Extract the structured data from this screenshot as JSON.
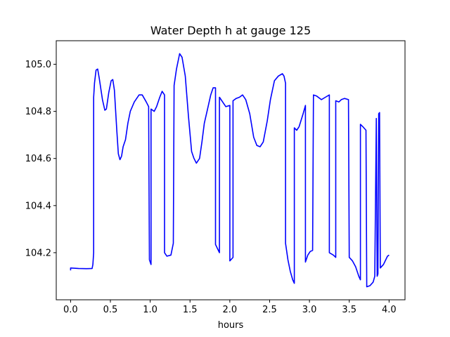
{
  "chart_data": {
    "type": "line",
    "title": "Water Depth h at gauge 125",
    "xlabel": "hours",
    "ylabel": "",
    "xlim": [
      -0.18,
      4.2
    ],
    "ylim": [
      104.0,
      105.1
    ],
    "xticks": [
      0.0,
      0.5,
      1.0,
      1.5,
      2.0,
      2.5,
      3.0,
      3.5,
      4.0
    ],
    "xtick_labels": [
      "0.0",
      "0.5",
      "1.0",
      "1.5",
      "2.0",
      "2.5",
      "3.0",
      "3.5",
      "4.0"
    ],
    "yticks": [
      104.2,
      104.4,
      104.6,
      104.8,
      105.0
    ],
    "ytick_labels": [
      "104.2",
      "104.4",
      "104.6",
      "104.8",
      "105.0"
    ],
    "grid": false,
    "legend": "none",
    "series": [
      {
        "color": "#0000ff",
        "points": [
          [
            0.0,
            104.125
          ],
          [
            0.0,
            104.135
          ],
          [
            0.1,
            104.133
          ],
          [
            0.2,
            104.132
          ],
          [
            0.27,
            104.133
          ],
          [
            0.28,
            104.15
          ],
          [
            0.29,
            104.2
          ],
          [
            0.29,
            104.86
          ],
          [
            0.3,
            104.92
          ],
          [
            0.32,
            104.975
          ],
          [
            0.34,
            104.98
          ],
          [
            0.36,
            104.94
          ],
          [
            0.4,
            104.85
          ],
          [
            0.43,
            104.805
          ],
          [
            0.45,
            104.81
          ],
          [
            0.48,
            104.88
          ],
          [
            0.51,
            104.93
          ],
          [
            0.53,
            104.935
          ],
          [
            0.55,
            104.89
          ],
          [
            0.58,
            104.72
          ],
          [
            0.6,
            104.62
          ],
          [
            0.62,
            104.595
          ],
          [
            0.64,
            104.61
          ],
          [
            0.66,
            104.65
          ],
          [
            0.69,
            104.68
          ],
          [
            0.72,
            104.75
          ],
          [
            0.75,
            104.8
          ],
          [
            0.8,
            104.84
          ],
          [
            0.86,
            104.87
          ],
          [
            0.9,
            104.87
          ],
          [
            0.95,
            104.84
          ],
          [
            0.98,
            104.82
          ],
          [
            0.99,
            104.17
          ],
          [
            1.01,
            104.15
          ],
          [
            1.01,
            104.81
          ],
          [
            1.05,
            104.8
          ],
          [
            1.08,
            104.82
          ],
          [
            1.12,
            104.86
          ],
          [
            1.15,
            104.885
          ],
          [
            1.18,
            104.87
          ],
          [
            1.18,
            104.2
          ],
          [
            1.21,
            104.185
          ],
          [
            1.26,
            104.19
          ],
          [
            1.29,
            104.24
          ],
          [
            1.3,
            104.91
          ],
          [
            1.33,
            104.98
          ],
          [
            1.37,
            105.045
          ],
          [
            1.4,
            105.03
          ],
          [
            1.44,
            104.95
          ],
          [
            1.48,
            104.78
          ],
          [
            1.52,
            104.63
          ],
          [
            1.55,
            104.6
          ],
          [
            1.58,
            104.58
          ],
          [
            1.62,
            104.6
          ],
          [
            1.65,
            104.67
          ],
          [
            1.68,
            104.75
          ],
          [
            1.72,
            104.81
          ],
          [
            1.76,
            104.87
          ],
          [
            1.79,
            104.9
          ],
          [
            1.82,
            104.9
          ],
          [
            1.82,
            104.235
          ],
          [
            1.87,
            104.2
          ],
          [
            1.87,
            104.86
          ],
          [
            1.92,
            104.835
          ],
          [
            1.95,
            104.82
          ],
          [
            2.0,
            104.825
          ],
          [
            2.0,
            104.165
          ],
          [
            2.04,
            104.18
          ],
          [
            2.04,
            104.845
          ],
          [
            2.08,
            104.855
          ],
          [
            2.12,
            104.86
          ],
          [
            2.16,
            104.87
          ],
          [
            2.2,
            104.85
          ],
          [
            2.25,
            104.79
          ],
          [
            2.3,
            104.69
          ],
          [
            2.34,
            104.655
          ],
          [
            2.38,
            104.65
          ],
          [
            2.42,
            104.67
          ],
          [
            2.47,
            104.76
          ],
          [
            2.51,
            104.85
          ],
          [
            2.56,
            104.93
          ],
          [
            2.61,
            104.95
          ],
          [
            2.66,
            104.96
          ],
          [
            2.68,
            104.95
          ],
          [
            2.7,
            104.92
          ],
          [
            2.7,
            104.24
          ],
          [
            2.73,
            104.17
          ],
          [
            2.76,
            104.12
          ],
          [
            2.79,
            104.085
          ],
          [
            2.81,
            104.07
          ],
          [
            2.81,
            104.73
          ],
          [
            2.84,
            104.72
          ],
          [
            2.87,
            104.735
          ],
          [
            2.92,
            104.79
          ],
          [
            2.95,
            104.825
          ],
          [
            2.95,
            104.16
          ],
          [
            2.98,
            104.19
          ],
          [
            3.01,
            104.205
          ],
          [
            3.04,
            104.21
          ],
          [
            3.05,
            104.87
          ],
          [
            3.09,
            104.865
          ],
          [
            3.15,
            104.85
          ],
          [
            3.2,
            104.86
          ],
          [
            3.25,
            104.87
          ],
          [
            3.25,
            104.2
          ],
          [
            3.3,
            104.19
          ],
          [
            3.33,
            104.18
          ],
          [
            3.33,
            104.845
          ],
          [
            3.37,
            104.84
          ],
          [
            3.4,
            104.85
          ],
          [
            3.44,
            104.855
          ],
          [
            3.49,
            104.85
          ],
          [
            3.5,
            104.18
          ],
          [
            3.54,
            104.165
          ],
          [
            3.58,
            104.14
          ],
          [
            3.62,
            104.1
          ],
          [
            3.64,
            104.085
          ],
          [
            3.64,
            104.745
          ],
          [
            3.67,
            104.735
          ],
          [
            3.71,
            104.72
          ],
          [
            3.72,
            104.055
          ],
          [
            3.76,
            104.06
          ],
          [
            3.8,
            104.075
          ],
          [
            3.82,
            104.1
          ],
          [
            3.84,
            104.77
          ],
          [
            3.85,
            104.1
          ],
          [
            3.86,
            104.11
          ],
          [
            3.87,
            104.79
          ],
          [
            3.88,
            104.795
          ],
          [
            3.89,
            104.135
          ],
          [
            3.93,
            104.15
          ],
          [
            3.98,
            104.185
          ],
          [
            4.0,
            104.19
          ]
        ]
      }
    ]
  }
}
